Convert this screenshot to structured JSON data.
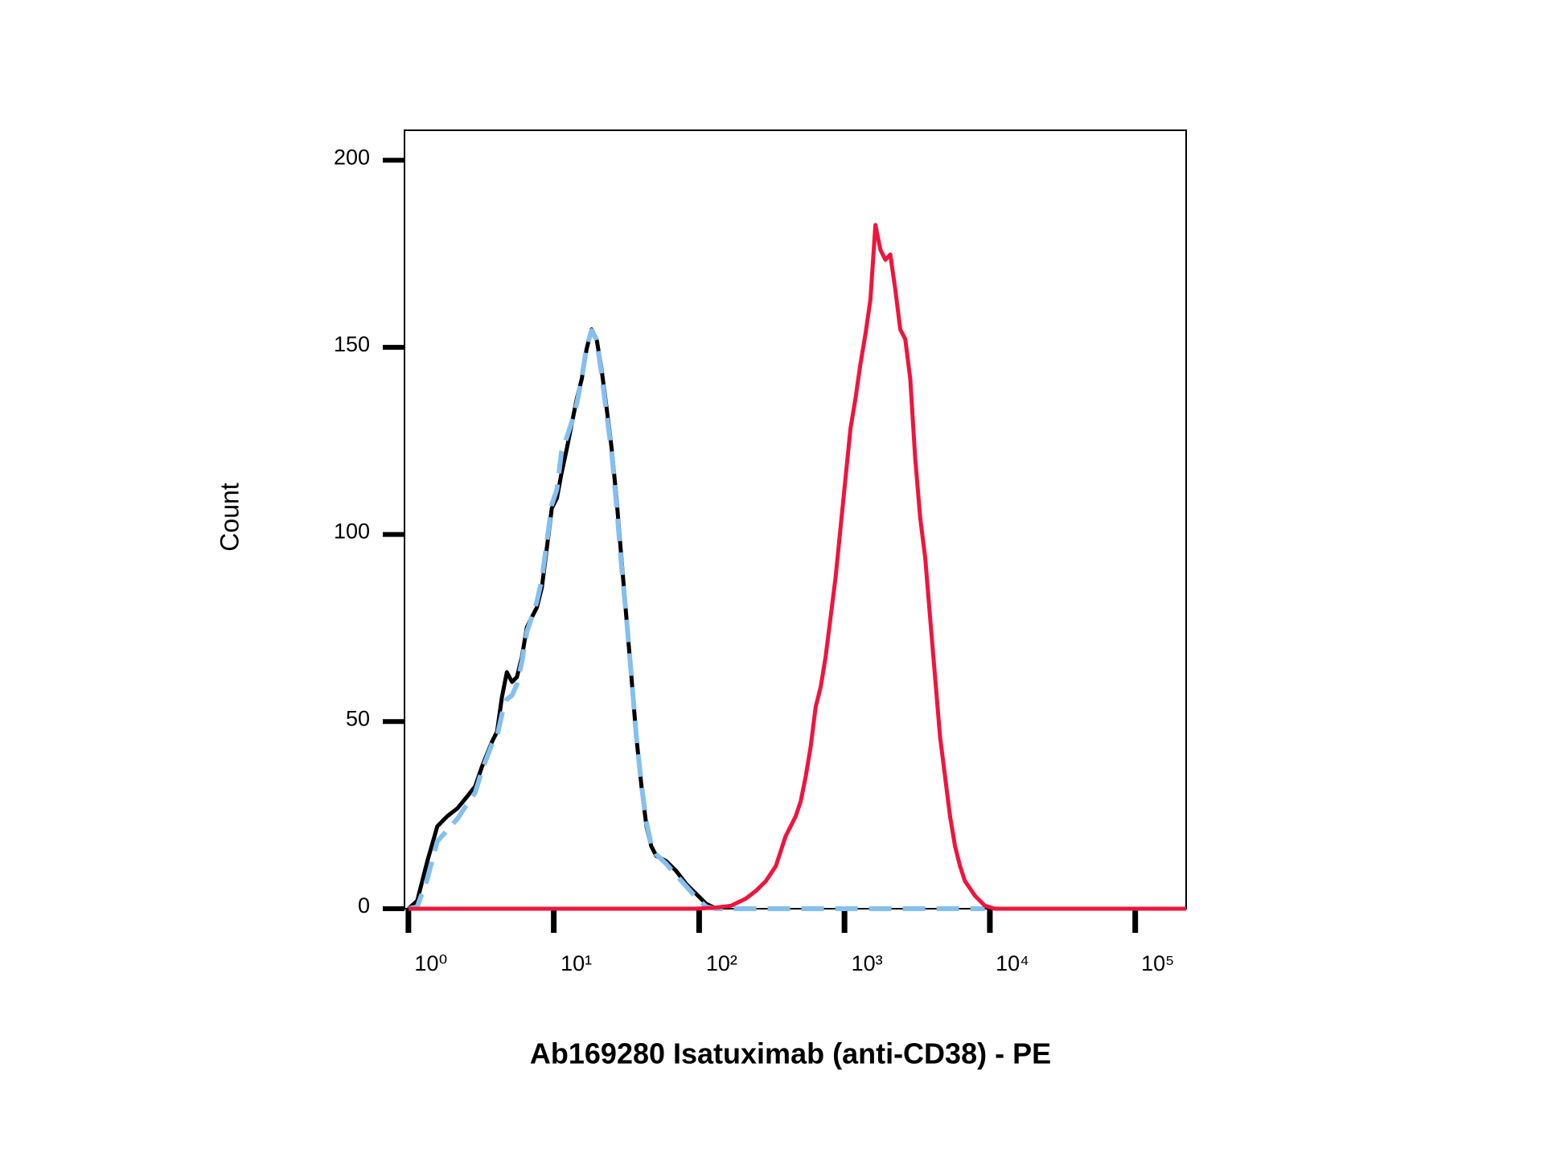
{
  "chart_data": {
    "type": "line",
    "x_label": "Ab169280 Isatuximab (anti-CD38) - PE",
    "y_label": "Count",
    "x_log": true,
    "xlim": [
      0.94,
      224000
    ],
    "ylim": [
      0,
      208
    ],
    "xticks": [
      {
        "value": 1,
        "label": "10⁰"
      },
      {
        "value": 10,
        "label": "10¹"
      },
      {
        "value": 100,
        "label": "10²"
      },
      {
        "value": 1000,
        "label": "10³"
      },
      {
        "value": 10000,
        "label": "10⁴"
      },
      {
        "value": 100000,
        "label": "10⁵"
      }
    ],
    "yticks": [
      0,
      50,
      100,
      150,
      200
    ],
    "series": [
      {
        "color": "#000000",
        "dash": false,
        "x": [
          1.0,
          1.15,
          1.35,
          1.58,
          1.85,
          2.17,
          2.54,
          2.88,
          3.21,
          3.76,
          4.07,
          4.4,
          4.76,
          5.16,
          5.58,
          6.04,
          6.53,
          7.07,
          7.65,
          8.28,
          8.96,
          9.69,
          10.5,
          11.3,
          12.3,
          13.3,
          14.4,
          15.6,
          16.8,
          18.2,
          19.7,
          21.3,
          23.1,
          25.0,
          27.0,
          29.2,
          31.6,
          34.2,
          37.0,
          40.1,
          43.4,
          46.9,
          50.7,
          59.4,
          69.5,
          81.5,
          95.3,
          112,
          131
        ],
        "values": [
          0,
          2.1,
          12.7,
          22,
          24.7,
          26.8,
          30,
          32.7,
          38,
          44.6,
          47.3,
          56.6,
          63.2,
          60.6,
          61.9,
          67.3,
          75.2,
          77.9,
          80.5,
          85.8,
          96.4,
          107,
          109.7,
          116.3,
          123,
          129.6,
          136.3,
          141.6,
          149.5,
          154.8,
          152.2,
          144.2,
          133.6,
          123,
          109.7,
          93.8,
          77.9,
          61.9,
          45.9,
          32.7,
          22,
          16.7,
          14.1,
          12.7,
          10.1,
          6.6,
          4,
          1.3,
          0
        ]
      },
      {
        "color": "#85bff0",
        "dash": true,
        "x": [
          1.0,
          1.15,
          1.35,
          1.58,
          1.85,
          2.17,
          2.54,
          2.88,
          3.21,
          3.76,
          4.07,
          4.4,
          4.76,
          5.16,
          5.58,
          6.04,
          6.53,
          7.07,
          7.65,
          8.28,
          8.96,
          9.69,
          10.5,
          11.3,
          12.3,
          13.3,
          14.4,
          15.6,
          16.8,
          18.2,
          19.7,
          21.3,
          23.1,
          25.0,
          27.0,
          29.2,
          31.6,
          34.2,
          37.0,
          40.1,
          43.4,
          46.9,
          50.7,
          59.4,
          69.5,
          81.5,
          95.3,
          112,
          131,
          9236
        ],
        "values": [
          0,
          0.5,
          8,
          18,
          21,
          24,
          28,
          31,
          37,
          44,
          46,
          52,
          56,
          57,
          60,
          66,
          74,
          78,
          82,
          88,
          98,
          108,
          112,
          122,
          126,
          130,
          135,
          142,
          150,
          154.5,
          152,
          143,
          132,
          122,
          108,
          92,
          78,
          62,
          46,
          33,
          23,
          17,
          14.5,
          12,
          9,
          6,
          3,
          0.5,
          0,
          0
        ]
      },
      {
        "color": "#f0143c",
        "dash": false,
        "x": [
          1.0,
          95.3,
          131,
          166,
          210,
          246,
          288,
          337,
          394,
          462,
          500,
          541,
          585,
          633,
          685,
          741,
          802,
          868,
          939,
          1016,
          1099,
          1190,
          1288,
          1393,
          1507,
          1631,
          1765,
          1910,
          2066,
          2236,
          2419,
          2618,
          2832,
          3065,
          3316,
          3588,
          3882,
          4200,
          4545,
          4918,
          5321,
          5757,
          6229,
          6740,
          7890,
          9236,
          10814,
          224000
        ],
        "values": [
          0,
          0,
          0.3,
          0.8,
          2.7,
          4.8,
          7.4,
          11.4,
          19.4,
          24.7,
          28.7,
          35.3,
          43.3,
          53.9,
          59.2,
          67.2,
          77.8,
          88.4,
          101.7,
          115,
          128.3,
          136.3,
          145.6,
          153.5,
          162.8,
          182.7,
          176.1,
          173.4,
          174.8,
          165.5,
          154.8,
          152.2,
          141.6,
          120.3,
          104.4,
          93.8,
          77.8,
          61.9,
          45.9,
          35.3,
          24.7,
          16.7,
          11.4,
          7.4,
          3.5,
          0.8,
          0,
          0
        ]
      }
    ]
  }
}
